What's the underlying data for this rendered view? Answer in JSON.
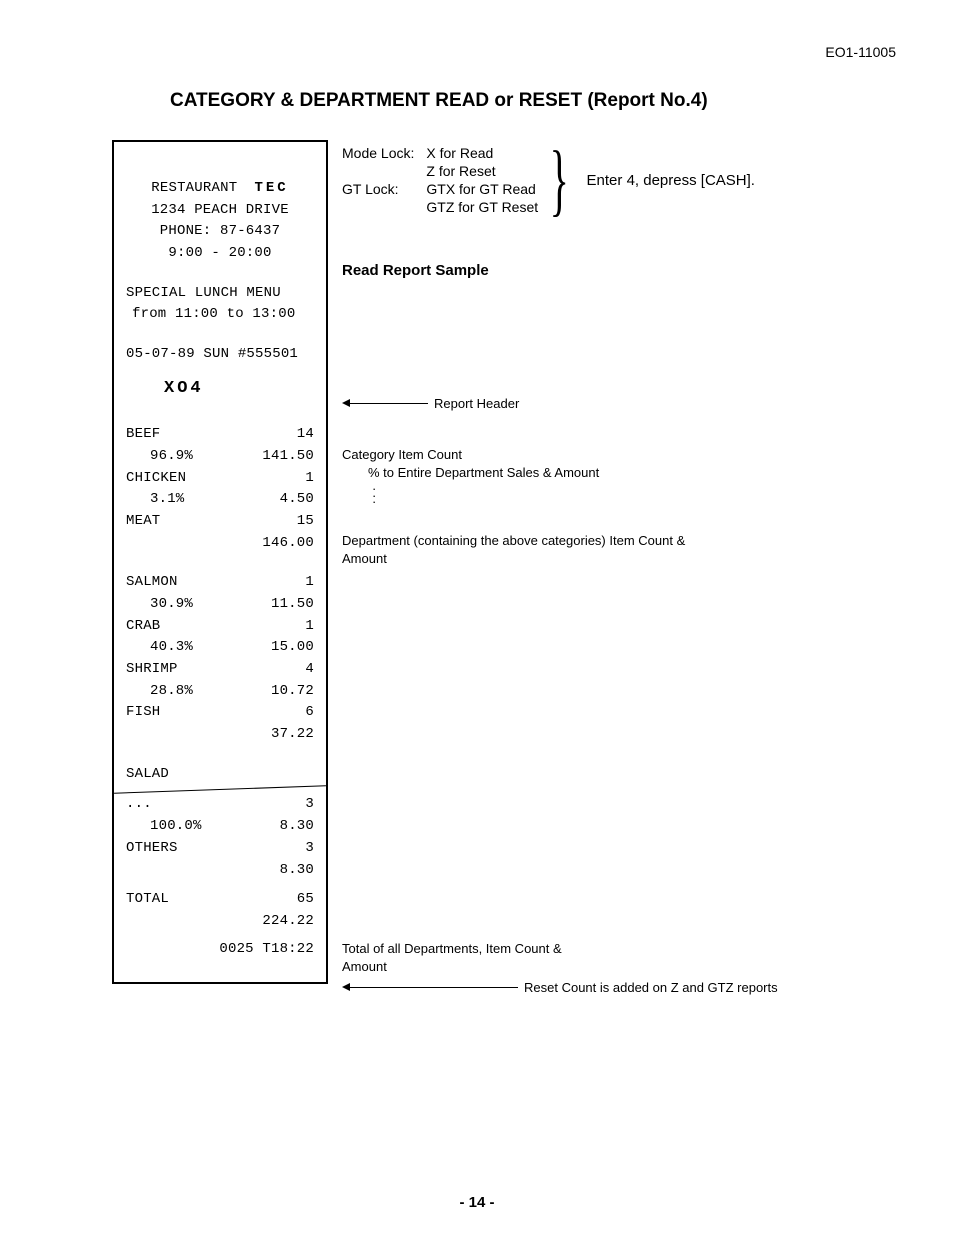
{
  "doc_id": "EO1-11005",
  "title": "CATEGORY & DEPARTMENT READ or RESET (Report No.4)",
  "lock_rows": [
    {
      "label": "Mode Lock:",
      "value": "X for Read"
    },
    {
      "label": "",
      "value": "Z for Reset"
    },
    {
      "label": "GT Lock:",
      "value": "GTX for GT Read"
    },
    {
      "label": "",
      "value": "GTZ for GT Reset"
    }
  ],
  "instruction": "Enter 4, depress [CASH].",
  "sample_heading": "Read Report Sample",
  "receipt": {
    "header": {
      "name_prefix": "RESTAURANT",
      "name_brand": "TEC",
      "address": "1234 PEACH DRIVE",
      "phone": "PHONE: 87-6437",
      "hours": "9:00 - 20:00",
      "lunch1": "SPECIAL LUNCH MENU",
      "lunch2": "from 11:00 to 13:00",
      "stamp": "05-07-89 SUN #555501"
    },
    "report_code": "XO4",
    "groups": [
      {
        "rows": [
          {
            "label": "BEEF",
            "count": "14"
          },
          {
            "label": "96.9%",
            "amount": "141.50",
            "indent": true
          },
          {
            "label": "CHICKEN",
            "count": "1"
          },
          {
            "label": "3.1%",
            "amount": "4.50",
            "indent": true
          },
          {
            "label": "MEAT",
            "count": "15"
          },
          {
            "label": "",
            "amount": "146.00",
            "indent": true
          }
        ]
      },
      {
        "rows": [
          {
            "label": "SALMON",
            "count": "1"
          },
          {
            "label": "30.9%",
            "amount": "11.50",
            "indent": true
          },
          {
            "label": "CRAB",
            "count": "1"
          },
          {
            "label": "40.3%",
            "amount": "15.00",
            "indent": true
          },
          {
            "label": "SHRIMP",
            "count": "4"
          },
          {
            "label": "28.8%",
            "amount": "10.72",
            "indent": true
          },
          {
            "label": "FISH",
            "count": "6"
          },
          {
            "label": "",
            "amount": "37.22",
            "indent": true
          }
        ]
      },
      {
        "rows": [
          {
            "label": "SALAD",
            "count": ""
          }
        ],
        "tear_after": true
      },
      {
        "rows": [
          {
            "label": "...",
            "count": "3"
          },
          {
            "label": "100.0%",
            "amount": "8.30",
            "indent": true
          },
          {
            "label": "OTHERS",
            "count": "3"
          },
          {
            "label": "",
            "amount": "8.30",
            "indent": true
          }
        ]
      }
    ],
    "total": {
      "label": "TOTAL",
      "count": "65",
      "amount": "224.22"
    },
    "footer": "0025 T18:22"
  },
  "annotations": {
    "report_header": "Report Header",
    "cat_item_count": "Category Item Count",
    "pct_line": "% to Entire Department Sales & Amount",
    "dept_line": "Department (containing the above categories) Item Count & Amount",
    "total_line": "Total of all Departments, Item Count & Amount",
    "reset_line": "Reset Count is added on Z and GTZ reports"
  },
  "page_number": "- 14 -"
}
